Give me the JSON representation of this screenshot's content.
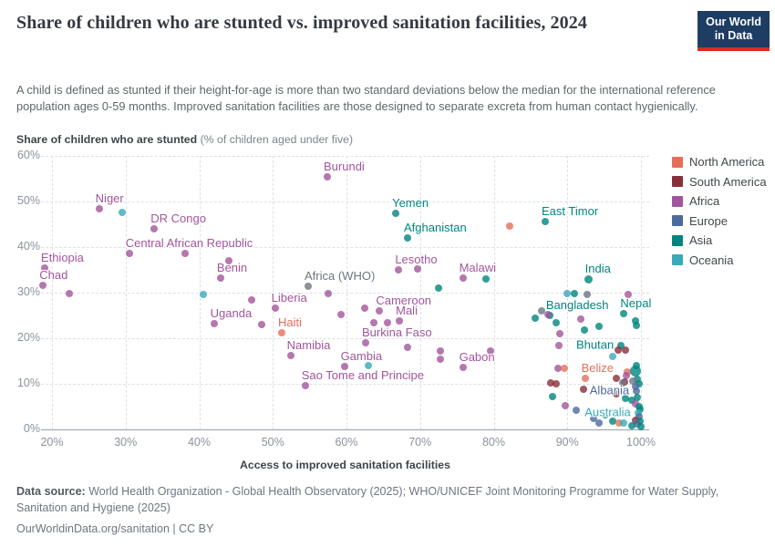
{
  "header": {
    "title": "Share of children who are stunted vs. improved sanitation facilities, 2024",
    "subtitle": "A child is defined as stunted if their height-for-age is more than two standard deviations below the median for the international reference population ages 0-59 months. Improved sanitation facilities are those designed to separate excreta from human contact hygienically.",
    "logo_line1": "Our World",
    "logo_line2": "in Data"
  },
  "footer": {
    "source_label": "Data source:",
    "source_text": " World Health Organization - Global Health Observatory (2025); WHO/UNICEF Joint Monitoring Programme for Water Supply, Sanitation and Hygiene (2025)",
    "link_text": "OurWorldinData.org/sanitation | CC BY"
  },
  "chart_data": {
    "type": "scatter",
    "title": "Share of children who are stunted vs. improved sanitation facilities, 2024",
    "xlabel": "Access to improved sanitation facilities",
    "ylabel": "Share of children who are stunted",
    "ylabel_note": " (% of children aged under five)",
    "xlim": [
      20,
      100
    ],
    "ylim": [
      0,
      60
    ],
    "x_ticks": [
      20,
      30,
      40,
      50,
      60,
      70,
      80,
      90,
      100
    ],
    "y_ticks": [
      0,
      10,
      20,
      30,
      40,
      50,
      60
    ],
    "tick_suffix": "%",
    "grid": true,
    "legend_position": "right",
    "legend": [
      "North America",
      "South America",
      "Africa",
      "Europe",
      "Asia",
      "Oceania"
    ],
    "continent_colors": {
      "North America": "#e56e5a",
      "South America": "#883039",
      "Africa": "#a2559c",
      "Europe": "#4c6a9c",
      "Asia": "#00847e",
      "Oceania": "#38aaba",
      "Region": "#6e7581"
    },
    "points": [
      {
        "x": 19.0,
        "y": 35.4,
        "c": "Africa",
        "l": "Ethiopia"
      },
      {
        "x": 18.8,
        "y": 31.6,
        "c": "Africa",
        "l": "Chad"
      },
      {
        "x": 22.4,
        "y": 29.8,
        "c": "Africa"
      },
      {
        "x": 26.4,
        "y": 48.4,
        "c": "Africa",
        "l": "Niger"
      },
      {
        "x": 29.5,
        "y": 47.7,
        "c": "Oceania"
      },
      {
        "x": 33.9,
        "y": 44.1,
        "c": "Africa",
        "l": "DR Congo"
      },
      {
        "x": 30.5,
        "y": 38.6,
        "c": "Africa",
        "l": "Central African Republic"
      },
      {
        "x": 38.1,
        "y": 38.6,
        "c": "Africa"
      },
      {
        "x": 40.5,
        "y": 29.7,
        "c": "Oceania"
      },
      {
        "x": 42.9,
        "y": 33.2,
        "c": "Africa",
        "l": "Benin"
      },
      {
        "x": 44.0,
        "y": 37.1,
        "c": "Africa"
      },
      {
        "x": 42.0,
        "y": 23.2,
        "c": "Africa",
        "l": "Uganda"
      },
      {
        "x": 47.1,
        "y": 28.4,
        "c": "Africa"
      },
      {
        "x": 48.5,
        "y": 23.1,
        "c": "Africa"
      },
      {
        "x": 50.3,
        "y": 26.6,
        "c": "Africa",
        "l": "Liberia"
      },
      {
        "x": 51.2,
        "y": 21.2,
        "c": "North America",
        "l": "Haiti"
      },
      {
        "x": 52.4,
        "y": 16.3,
        "c": "Africa",
        "l": "Namibia"
      },
      {
        "x": 54.4,
        "y": 9.7,
        "c": "Africa",
        "l": "Sao Tome and Principe"
      },
      {
        "x": 54.8,
        "y": 31.5,
        "c": "Region",
        "l": "Africa (WHO)"
      },
      {
        "x": 57.4,
        "y": 55.5,
        "c": "Africa",
        "l": "Burundi"
      },
      {
        "x": 57.5,
        "y": 29.8,
        "c": "Africa"
      },
      {
        "x": 59.3,
        "y": 25.3,
        "c": "Africa"
      },
      {
        "x": 59.7,
        "y": 13.8,
        "c": "Africa",
        "l": "Gambia"
      },
      {
        "x": 63.0,
        "y": 14.0,
        "c": "Oceania"
      },
      {
        "x": 62.5,
        "y": 26.6,
        "c": "Africa"
      },
      {
        "x": 64.5,
        "y": 26.0,
        "c": "Africa",
        "l": "Cameroon"
      },
      {
        "x": 63.7,
        "y": 23.5,
        "c": "Africa"
      },
      {
        "x": 65.6,
        "y": 23.5,
        "c": "Africa"
      },
      {
        "x": 67.2,
        "y": 23.9,
        "c": "Africa",
        "l": "Mali"
      },
      {
        "x": 62.6,
        "y": 19.1,
        "c": "Africa",
        "l": "Burkina Faso"
      },
      {
        "x": 68.3,
        "y": 18.0,
        "c": "Africa"
      },
      {
        "x": 66.7,
        "y": 47.4,
        "c": "Asia",
        "l": "Yemen"
      },
      {
        "x": 68.3,
        "y": 42.0,
        "c": "Asia",
        "l": "Afghanistan"
      },
      {
        "x": 67.1,
        "y": 35.1,
        "c": "Africa",
        "l": "Lesotho"
      },
      {
        "x": 69.6,
        "y": 35.3,
        "c": "Africa"
      },
      {
        "x": 72.5,
        "y": 31.0,
        "c": "Asia"
      },
      {
        "x": 72.7,
        "y": 17.3,
        "c": "Africa"
      },
      {
        "x": 72.8,
        "y": 15.5,
        "c": "Africa"
      },
      {
        "x": 75.8,
        "y": 33.3,
        "c": "Africa",
        "l": "Malawi"
      },
      {
        "x": 79.0,
        "y": 33.1,
        "c": "Asia"
      },
      {
        "x": 75.8,
        "y": 13.7,
        "c": "Africa",
        "l": "Gabon"
      },
      {
        "x": 79.6,
        "y": 17.2,
        "c": "Africa"
      },
      {
        "x": 82.2,
        "y": 44.7,
        "c": "North America"
      },
      {
        "x": 87.0,
        "y": 45.6,
        "c": "Asia",
        "l": "East Timor"
      },
      {
        "x": 85.6,
        "y": 24.5,
        "c": "Asia"
      },
      {
        "x": 86.5,
        "y": 26.0,
        "c": "Region"
      },
      {
        "x": 87.6,
        "y": 25.0,
        "c": "Asia",
        "l": "Bangladesh"
      },
      {
        "x": 88.5,
        "y": 23.4,
        "c": "Asia"
      },
      {
        "x": 87.4,
        "y": 25.3,
        "c": "Africa"
      },
      {
        "x": 90.0,
        "y": 29.8,
        "c": "Oceania"
      },
      {
        "x": 90.9,
        "y": 29.8,
        "c": "Asia"
      },
      {
        "x": 92.7,
        "y": 29.7,
        "c": "Region"
      },
      {
        "x": 92.9,
        "y": 33.0,
        "c": "Asia",
        "l": "India",
        "r": 9
      },
      {
        "x": 98.3,
        "y": 29.7,
        "c": "Africa"
      },
      {
        "x": 97.7,
        "y": 25.4,
        "c": "Asia",
        "l": "Nepal"
      },
      {
        "x": 99.3,
        "y": 23.9,
        "c": "Asia"
      },
      {
        "x": 99.4,
        "y": 22.9,
        "c": "Asia"
      },
      {
        "x": 91.8,
        "y": 24.2,
        "c": "Africa"
      },
      {
        "x": 92.3,
        "y": 21.9,
        "c": "Asia"
      },
      {
        "x": 94.3,
        "y": 22.7,
        "c": "Asia"
      },
      {
        "x": 89.0,
        "y": 21.0,
        "c": "Africa"
      },
      {
        "x": 88.8,
        "y": 18.5,
        "c": "Africa"
      },
      {
        "x": 97.3,
        "y": 18.4,
        "c": "Asia",
        "l": "Bhutan",
        "lp": "left"
      },
      {
        "x": 96.9,
        "y": 17.5,
        "c": "South America"
      },
      {
        "x": 97.9,
        "y": 17.5,
        "c": "South America"
      },
      {
        "x": 96.2,
        "y": 16.1,
        "c": "Oceania"
      },
      {
        "x": 88.7,
        "y": 13.5,
        "c": "Africa"
      },
      {
        "x": 89.6,
        "y": 13.5,
        "c": "North America"
      },
      {
        "x": 92.4,
        "y": 11.3,
        "c": "North America",
        "l": "Belize"
      },
      {
        "x": 87.7,
        "y": 10.3,
        "c": "South America"
      },
      {
        "x": 88.5,
        "y": 10.1,
        "c": "South America"
      },
      {
        "x": 92.2,
        "y": 8.9,
        "c": "South America"
      },
      {
        "x": 88.0,
        "y": 7.2,
        "c": "Asia"
      },
      {
        "x": 89.7,
        "y": 5.2,
        "c": "Africa"
      },
      {
        "x": 91.2,
        "y": 4.3,
        "c": "Europe"
      },
      {
        "x": 93.5,
        "y": 2.5,
        "c": "Europe"
      },
      {
        "x": 95.2,
        "y": 3.3,
        "c": "Asia"
      },
      {
        "x": 94.3,
        "y": 1.5,
        "c": "Europe"
      },
      {
        "x": 96.1,
        "y": 1.9,
        "c": "Asia"
      },
      {
        "x": 97.0,
        "y": 1.5,
        "c": "North America"
      },
      {
        "x": 97.6,
        "y": 1.5,
        "c": "Oceania"
      },
      {
        "x": 99.4,
        "y": 14.1,
        "c": "Asia"
      },
      {
        "x": 98.1,
        "y": 12.7,
        "c": "North America"
      },
      {
        "x": 99.2,
        "y": 12.9,
        "c": "Asia",
        "r": 12
      },
      {
        "x": 98.0,
        "y": 11.9,
        "c": "Africa"
      },
      {
        "x": 99.5,
        "y": 11.0,
        "c": "Asia"
      },
      {
        "x": 96.7,
        "y": 11.2,
        "c": "South America"
      },
      {
        "x": 97.8,
        "y": 10.5,
        "c": "South America"
      },
      {
        "x": 98.9,
        "y": 10.7,
        "c": "Region"
      },
      {
        "x": 97.5,
        "y": 10.3,
        "c": "Region"
      },
      {
        "x": 99.7,
        "y": 10.0,
        "c": "Asia"
      },
      {
        "x": 99.3,
        "y": 9.4,
        "c": "Europe"
      },
      {
        "x": 99.4,
        "y": 8.5,
        "c": "Europe",
        "l": "Albania",
        "lp": "left"
      },
      {
        "x": 96.7,
        "y": 7.9,
        "c": "South America"
      },
      {
        "x": 97.9,
        "y": 6.9,
        "c": "Asia"
      },
      {
        "x": 98.7,
        "y": 6.5,
        "c": "Asia"
      },
      {
        "x": 99.5,
        "y": 7.0,
        "c": "Asia"
      },
      {
        "x": 99.3,
        "y": 5.7,
        "c": "Africa"
      },
      {
        "x": 99.8,
        "y": 5.0,
        "c": "Asia"
      },
      {
        "x": 99.9,
        "y": 4.4,
        "c": "Asia"
      },
      {
        "x": 99.6,
        "y": 3.7,
        "c": "Oceania",
        "l": "Australia",
        "lp": "left"
      },
      {
        "x": 99.8,
        "y": 2.8,
        "c": "Europe"
      },
      {
        "x": 99.2,
        "y": 2.0,
        "c": "South America"
      },
      {
        "x": 99.9,
        "y": 1.8,
        "c": "Asia"
      },
      {
        "x": 99.5,
        "y": 1.2,
        "c": "Europe"
      },
      {
        "x": 98.8,
        "y": 0.9,
        "c": "Asia"
      },
      {
        "x": 100.0,
        "y": 0.7,
        "c": "Asia"
      }
    ]
  }
}
